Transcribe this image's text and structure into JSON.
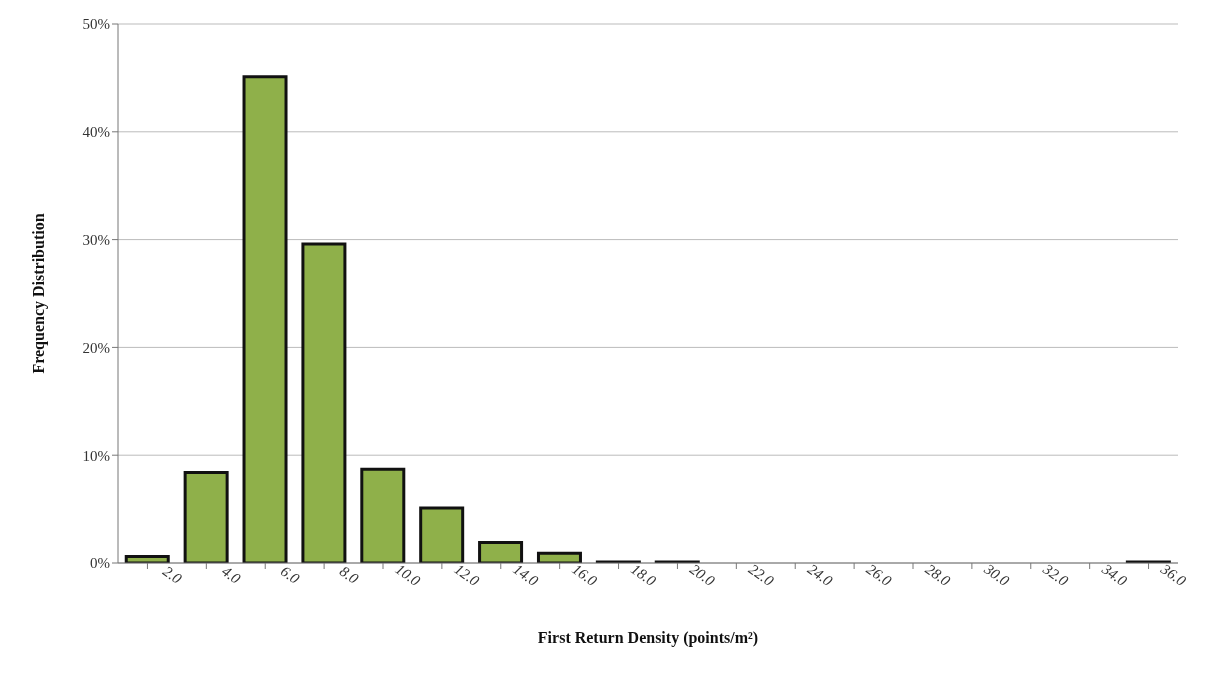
{
  "chart_data": {
    "type": "bar",
    "xlabel": "First Return Density (points/m²)",
    "ylabel": "Frequency Distribution",
    "categories": [
      "2.0",
      "4.0",
      "6.0",
      "8.0",
      "10.0",
      "12.0",
      "14.0",
      "16.0",
      "18.0",
      "20.0",
      "22.0",
      "24.0",
      "26.0",
      "28.0",
      "30.0",
      "32.0",
      "34.0",
      "36.0"
    ],
    "values": [
      0.6,
      8.4,
      45.1,
      29.6,
      8.7,
      5.1,
      1.9,
      0.9,
      0.1,
      0.1,
      0,
      0,
      0,
      0,
      0,
      0,
      0,
      0.1
    ],
    "color": "#8fb04a",
    "ylim": [
      0,
      50
    ],
    "yticks": [
      {
        "value": 0,
        "label": "0%"
      },
      {
        "value": 10,
        "label": "10%"
      },
      {
        "value": 20,
        "label": "20%"
      },
      {
        "value": 30,
        "label": "30%"
      },
      {
        "value": 40,
        "label": "40%"
      },
      {
        "value": 50,
        "label": "50%"
      }
    ],
    "grid": "y",
    "legend": false
  }
}
